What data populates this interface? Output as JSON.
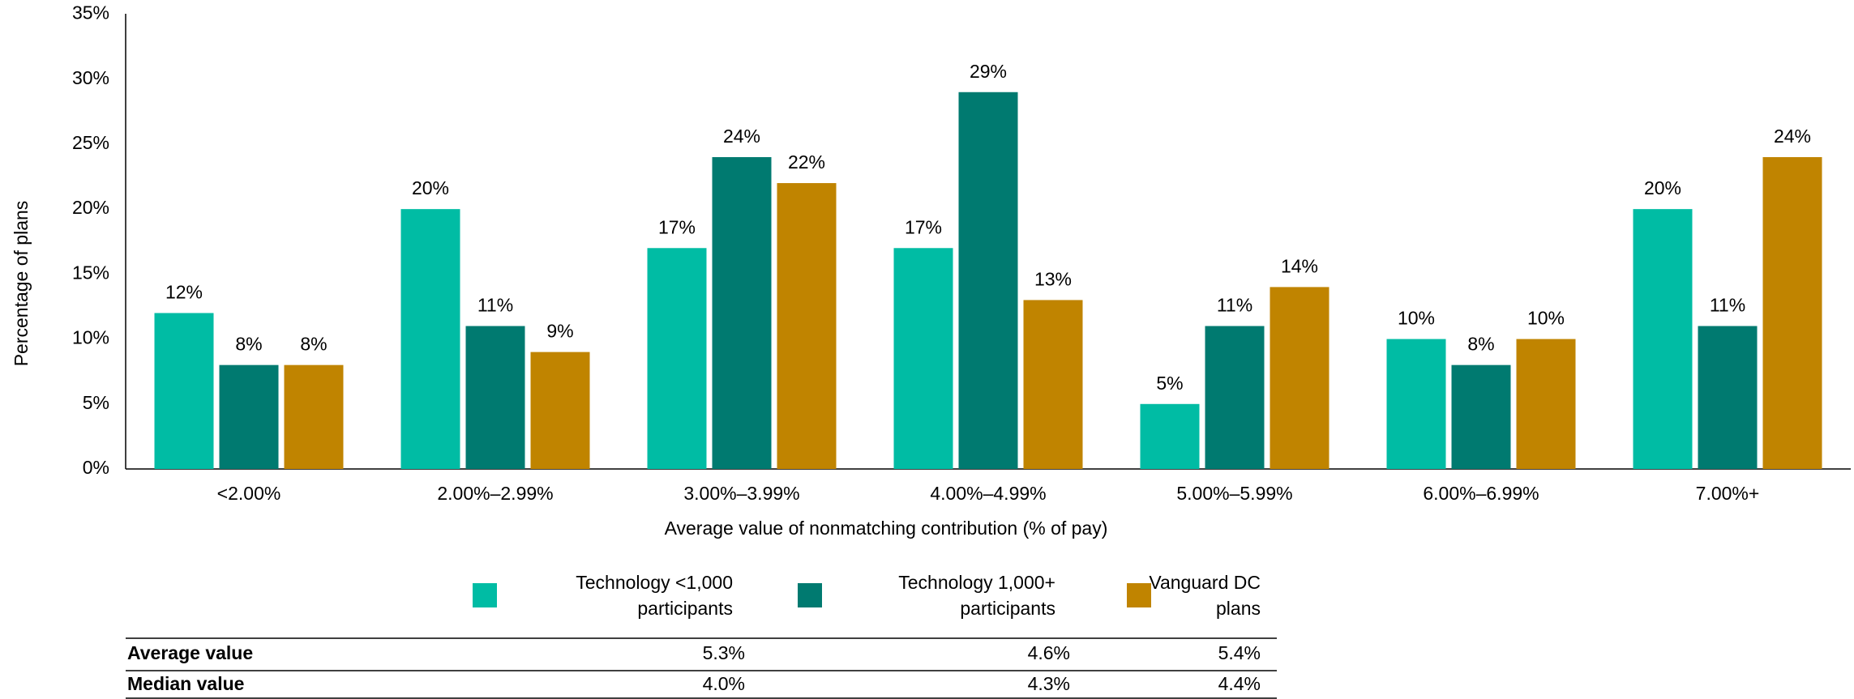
{
  "chart_data": {
    "type": "bar",
    "y_label": "Percentage of plans",
    "x_label": "Average value of nonmatching contribution (% of pay)",
    "categories": [
      "<2.00%",
      "2.00%–2.99%",
      "3.00%–3.99%",
      "4.00%–4.99%",
      "5.00%–5.99%",
      "6.00%–6.99%",
      "7.00%+"
    ],
    "series": [
      {
        "name": "Technology <1,000 participants",
        "color": "#00bca4",
        "values": [
          12,
          20,
          17,
          17,
          5,
          10,
          20
        ],
        "value_labels": [
          "12%",
          "20%",
          "17%",
          "17%",
          "5%",
          "10%",
          "20%"
        ]
      },
      {
        "name": "Technology 1,000+ participants",
        "color": "#007a70",
        "values": [
          8,
          11,
          24,
          29,
          11,
          8,
          11
        ],
        "value_labels": [
          "8%",
          "11%",
          "24%",
          "29%",
          "11%",
          "8%",
          "11%"
        ]
      },
      {
        "name": "Vanguard DC plans",
        "color": "#c08400",
        "values": [
          8,
          9,
          22,
          13,
          14,
          10,
          24
        ],
        "value_labels": [
          "8%",
          "9%",
          "22%",
          "13%",
          "14%",
          "10%",
          "24%"
        ]
      }
    ],
    "ylim": [
      0,
      35
    ],
    "yticks": [
      {
        "value": 0,
        "label": "0%"
      },
      {
        "value": 5,
        "label": "5%"
      },
      {
        "value": 10,
        "label": "10%"
      },
      {
        "value": 15,
        "label": "15%"
      },
      {
        "value": 20,
        "label": "20%"
      },
      {
        "value": 25,
        "label": "25%"
      },
      {
        "value": 30,
        "label": "30%"
      },
      {
        "value": 35,
        "label": "35%"
      }
    ]
  },
  "table": {
    "rows": [
      [
        "Average value",
        "5.3%",
        "4.6%",
        "5.4%"
      ],
      [
        "Median value",
        "4.0%",
        "4.3%",
        "4.4%"
      ]
    ]
  }
}
